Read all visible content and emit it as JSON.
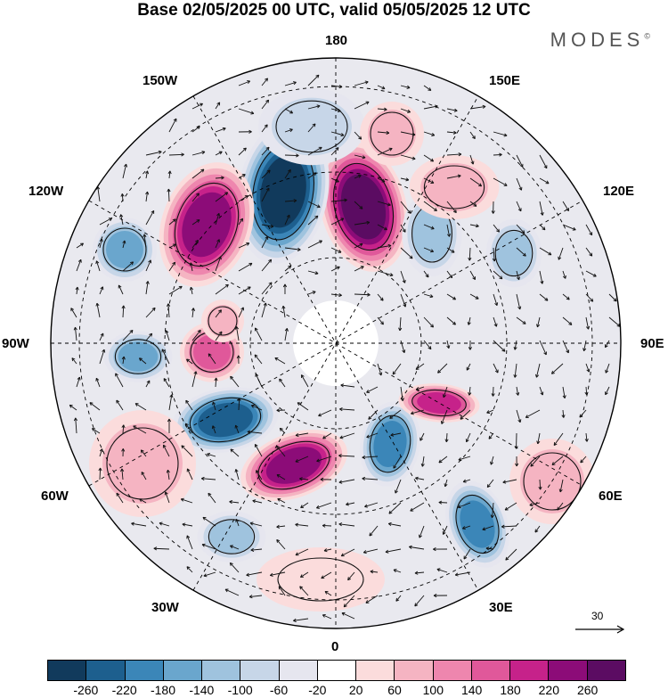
{
  "title": "Base 02/05/2025 00 UTC, valid 05/05/2025 12 UTC",
  "brand": "MODES",
  "brand_mark": "©",
  "map": {
    "projection": "north-polar-stereographic",
    "longitude_labels": {
      "top": "180",
      "top_left": "150W",
      "top_right": "150E",
      "upper_left": "120W",
      "upper_right": "120E",
      "left": "90W",
      "right": "90E",
      "lower_left": "60W",
      "lower_right": "60E",
      "bottom_left": "30W",
      "bottom_right": "30E",
      "bottom": "0"
    },
    "anomaly_centers": [
      {
        "sign": "positive",
        "strength": 260,
        "near": "180E-150E"
      },
      {
        "sign": "negative",
        "strength": -260,
        "near": "160W-170W"
      },
      {
        "sign": "positive",
        "strength": 220,
        "near": "140W"
      },
      {
        "sign": "negative",
        "strength": -220,
        "near": "70W-80W"
      },
      {
        "sign": "positive",
        "strength": 220,
        "near": "30W-10W"
      },
      {
        "sign": "negative",
        "strength": -180,
        "near": "20E"
      },
      {
        "sign": "negative",
        "strength": -180,
        "near": "40E"
      },
      {
        "sign": "positive",
        "strength": 180,
        "near": "80E"
      },
      {
        "sign": "negative",
        "strength": -140,
        "near": "100W"
      },
      {
        "sign": "negative",
        "strength": -140,
        "near": "120W"
      },
      {
        "sign": "positive",
        "strength": 140,
        "near": "100W-80W"
      },
      {
        "sign": "negative",
        "strength": -100,
        "near": "120E-150E"
      }
    ]
  },
  "wind_scale": {
    "label": "30"
  },
  "colorbar": {
    "colors": [
      "#113a5c",
      "#1d5f8e",
      "#3b86b8",
      "#6aa6cd",
      "#9fc3de",
      "#c7d6e8",
      "#e6e6ef",
      "#ffffff",
      "#fbdcdc",
      "#f5b4c2",
      "#ee86ae",
      "#e0589a",
      "#c6228a",
      "#8c0c78",
      "#5b0c62"
    ],
    "labels": [
      "-260",
      "-220",
      "-180",
      "-140",
      "-100",
      "-60",
      "-20",
      "20",
      "60",
      "100",
      "140",
      "180",
      "220",
      "260"
    ]
  },
  "colors": {
    "land_outline": "#333333",
    "graticule": "#000000"
  }
}
